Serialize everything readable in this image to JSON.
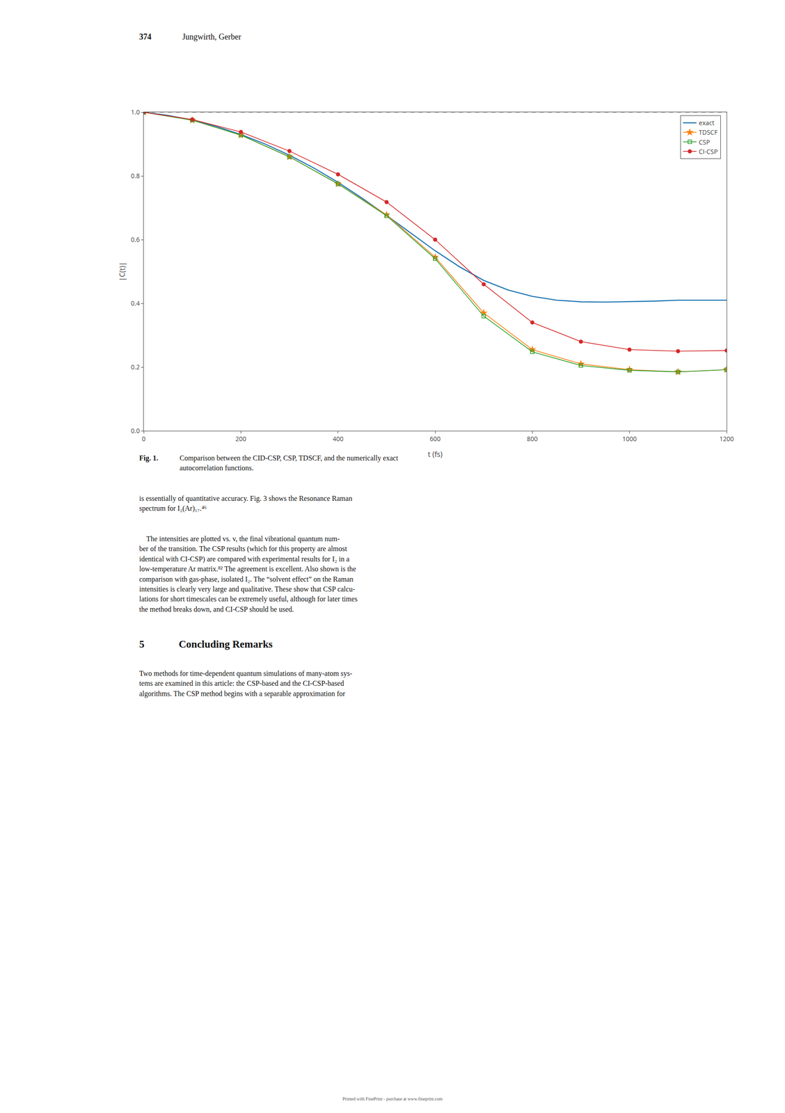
{
  "chart_data": {
    "type": "line",
    "xlabel": "t (fs)",
    "ylabel": "|C(t)|",
    "xlim": [
      0,
      1200
    ],
    "ylim": [
      0.0,
      1.0
    ],
    "xticks": [
      0,
      200,
      400,
      600,
      800,
      1000,
      1200
    ],
    "yticks": [
      {
        "value": 0.0,
        "label": "0.0"
      },
      0.2,
      0.4,
      0.6,
      0.8,
      {
        "value": 1.0,
        "label": "1.0"
      }
    ],
    "grid": false,
    "legend": "upper right",
    "series": [
      {
        "name": "exact",
        "marker": "none",
        "line_style": "solid",
        "x": [
          0,
          50,
          100,
          150,
          200,
          250,
          300,
          350,
          400,
          450,
          500,
          550,
          600,
          650,
          700,
          750,
          800,
          850,
          900,
          950,
          1000,
          1050,
          1100,
          1150,
          1200
        ],
        "values": [
          1.0,
          0.99,
          0.975,
          0.955,
          0.93,
          0.9,
          0.865,
          0.825,
          0.78,
          0.73,
          0.676,
          0.62,
          0.565,
          0.515,
          0.472,
          0.442,
          0.422,
          0.41,
          0.405,
          0.404,
          0.405,
          0.407,
          0.41,
          0.41,
          0.41
        ]
      },
      {
        "name": "TDSCF",
        "marker": "star",
        "line_style": "solid",
        "x": [
          0,
          100,
          200,
          300,
          400,
          500,
          600,
          700,
          800,
          900,
          1000,
          1100,
          1200
        ],
        "values": [
          1.0,
          0.975,
          0.928,
          0.86,
          0.775,
          0.678,
          0.545,
          0.37,
          0.255,
          0.21,
          0.192,
          0.185,
          0.192
        ]
      },
      {
        "name": "CSP",
        "marker": "square-open",
        "line_style": "solid",
        "x": [
          0,
          100,
          200,
          300,
          400,
          500,
          600,
          700,
          800,
          900,
          1000,
          1100,
          1200
        ],
        "values": [
          1.0,
          0.975,
          0.928,
          0.86,
          0.775,
          0.675,
          0.54,
          0.36,
          0.248,
          0.205,
          0.19,
          0.185,
          0.192
        ]
      },
      {
        "name": "CI-CSP",
        "marker": "circle",
        "line_style": "solid",
        "x": [
          0,
          100,
          200,
          300,
          400,
          500,
          600,
          700,
          800,
          900,
          1000,
          1100,
          1200
        ],
        "values": [
          1.0,
          0.977,
          0.938,
          0.878,
          0.805,
          0.718,
          0.6,
          0.46,
          0.34,
          0.28,
          0.255,
          0.25,
          0.252
        ]
      }
    ],
    "reference_lines": [
      {
        "y": 1.0,
        "line_style": "dashed"
      }
    ],
    "annotations": [
      "374",
      "Jungwirth, Gerber",
      "Fig. 1.",
      "Comparison between the CID-CSP, CSP, TDSCF, and the numerically exact\nautocorrelation functions.",
      "is essentially of quantitative accuracy. Fig. 3 shows the Resonance Raman\nspectrum for I₂(Ar)₁₇.⁴⁶",
      "    The intensities are plotted vs. v, the final vibrational quantum num-\nber of the transition. The CSP results (which for this property are almost\nidentical with CI-CSP) are compared with experimental results for I₂ in a\nlow-temperature Ar matrix.⁸² The agreement is excellent. Also shown is the\ncomparison with gas-phase, isolated I₂. The “solvent effect” on the Raman\nintensities is clearly very large and qualitative. These show that CSP calcu-\nlations for short timescales can be extremely useful, although for later times\nthe method breaks down, and CI-CSP should be used.",
      "5",
      "Concluding Remarks",
      "Two methods for time-dependent quantum simulations of many-atom sys-\ntems are examined in this article: the CSP-based and the CI-CSP-based\nalgorithms. The CSP method begins with a separable approximation for",
      "Printed with FinePrint - purchase at www.fineprint.com"
    ]
  }
}
